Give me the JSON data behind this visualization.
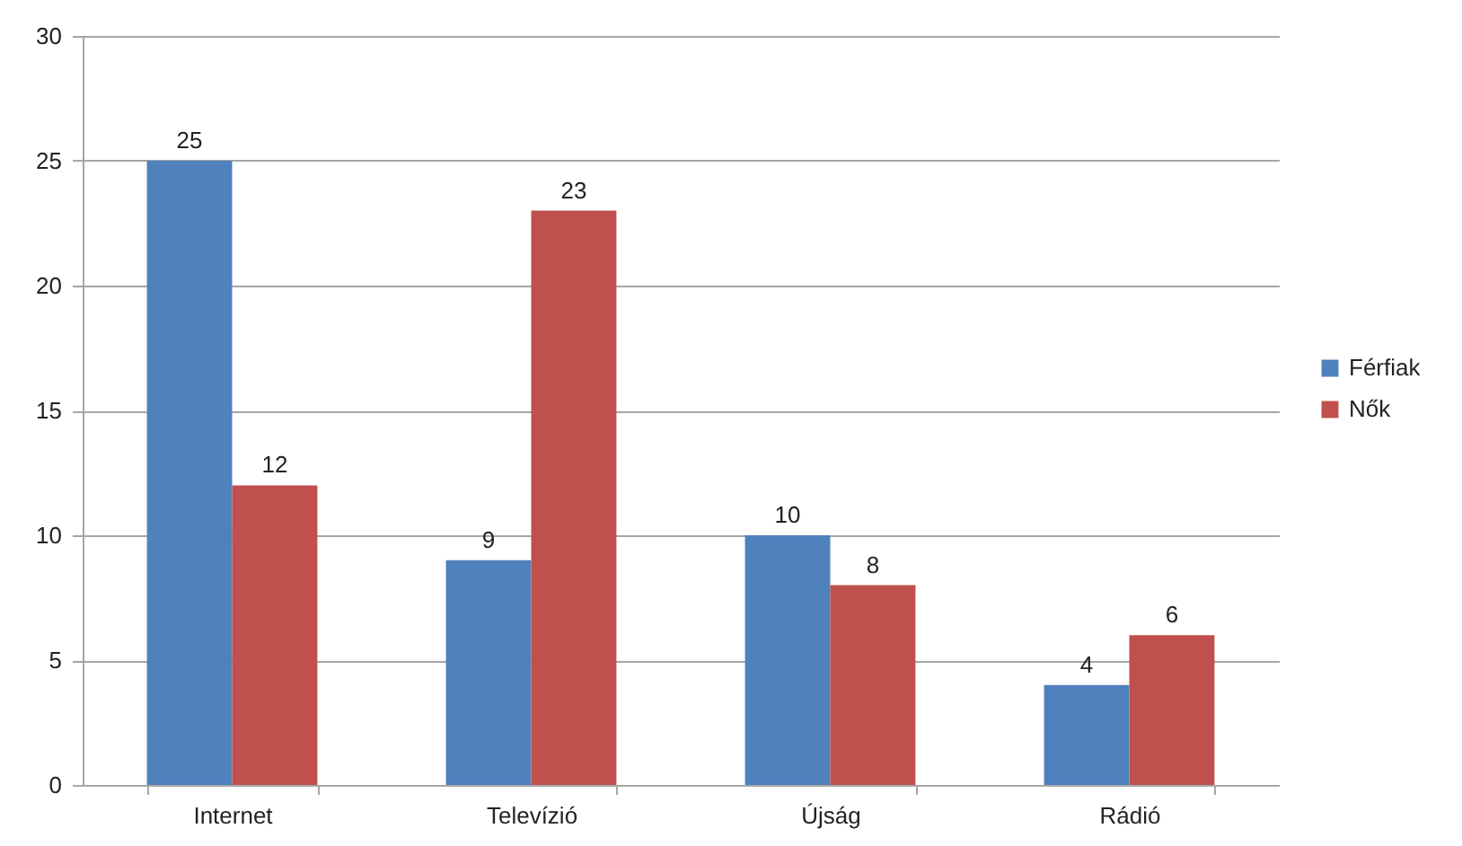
{
  "chart_data": {
    "type": "bar",
    "categories": [
      "Internet",
      "Televízió",
      "Újság",
      "Rádió"
    ],
    "series": [
      {
        "name": "Férfiak",
        "color": "#4f81bd",
        "values": [
          25,
          9,
          10,
          4
        ]
      },
      {
        "name": "Nők",
        "color": "#c0504d",
        "values": [
          12,
          23,
          8,
          6
        ]
      }
    ],
    "ylim": [
      0,
      30
    ],
    "yticks": [
      0,
      5,
      10,
      15,
      20,
      25,
      30
    ],
    "grid": "y",
    "legend": "right",
    "data_labels": true
  }
}
